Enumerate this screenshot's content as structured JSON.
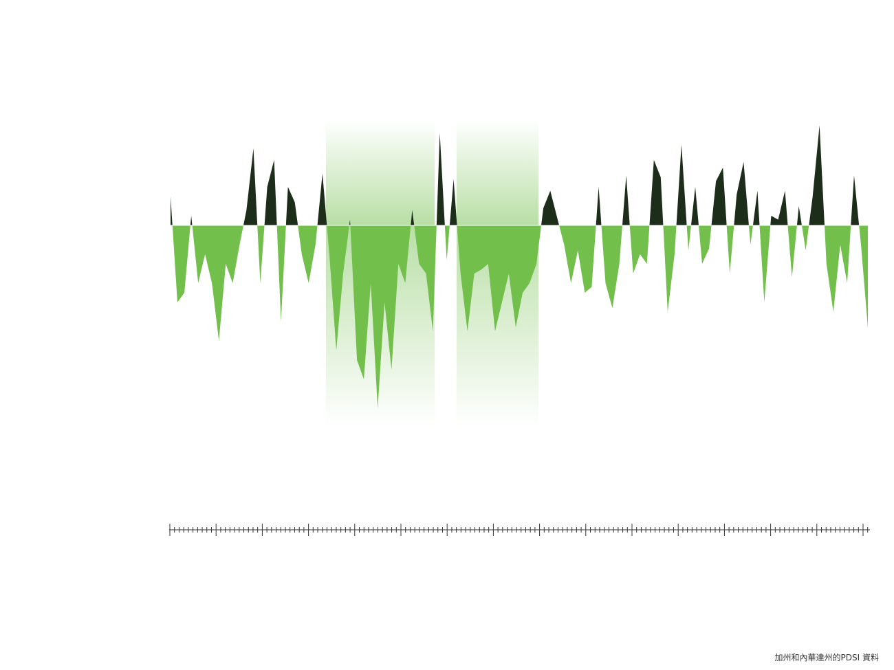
{
  "chart_data": {
    "type": "area",
    "values": [
      1.5,
      -4,
      -3.5,
      0.5,
      -3,
      -1.5,
      -3,
      -6,
      -2,
      -3,
      -1,
      0.8,
      4,
      -3,
      2,
      3.4,
      -5,
      2,
      1.2,
      -1.5,
      -3,
      -1,
      2.7,
      -1.5,
      -6.5,
      -2.5,
      0.3,
      -7,
      -8,
      -3,
      -9.5,
      -4,
      -7.5,
      -2,
      -3,
      0.8,
      -2,
      -2.5,
      -5.5,
      4.8,
      -1.8,
      2.4,
      -2.5,
      -5.5,
      -2.5,
      -2.3,
      -2,
      -5.5,
      -4,
      -2.5,
      -5.3,
      -3.5,
      -3,
      -2,
      0.9,
      1.8,
      0.4,
      -1,
      -3,
      -1.3,
      -3.5,
      -3.2,
      2,
      -3,
      -4.3,
      -2,
      2.6,
      -2.5,
      -1.5,
      -2,
      3.4,
      2.5,
      -4.5,
      -1.5,
      4.2,
      -1.3,
      2,
      -2,
      -1.2,
      2.3,
      3,
      -2.5,
      1.6,
      3.3,
      -1,
      1.8,
      -4,
      0.5,
      0.3,
      1.8,
      -2.7,
      1,
      -1.3,
      1.5,
      5.2,
      -2,
      -4.5,
      -1,
      -3,
      2.6,
      -1,
      -5.3
    ],
    "positive_color": "#1c2e1a",
    "negative_color": "#72bf4c",
    "ylim": [
      -10,
      6
    ]
  },
  "source": "加州和內華達州的PDSI 資料"
}
